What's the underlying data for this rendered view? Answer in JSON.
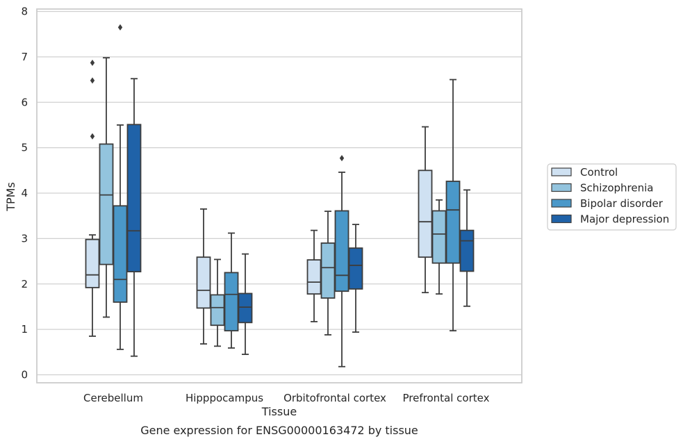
{
  "chart_data": {
    "type": "boxplot",
    "caption": "Gene expression for ENSG00000163472 by tissue",
    "xlabel": "Tissue",
    "ylabel": "TPMs",
    "ylim": [
      -0.2,
      8.0
    ],
    "yticks": [
      0,
      1,
      2,
      3,
      4,
      5,
      6,
      7,
      8
    ],
    "grid": true,
    "legend_position": "right",
    "categories": [
      "Cerebellum",
      "Hipppocampus",
      "Orbitofrontal cortex",
      "Prefrontal cortex"
    ],
    "series": [
      {
        "name": "Control",
        "color": "#cfe1f2",
        "boxes": [
          {
            "whisker_low": 0.85,
            "q1": 1.92,
            "median": 2.2,
            "q3": 2.98,
            "whisker_high": 3.08,
            "outliers": [
              5.25,
              6.48,
              6.87
            ]
          },
          {
            "whisker_low": 0.68,
            "q1": 1.47,
            "median": 1.86,
            "q3": 2.59,
            "whisker_high": 3.65,
            "outliers": []
          },
          {
            "whisker_low": 1.17,
            "q1": 1.78,
            "median": 2.04,
            "q3": 2.53,
            "whisker_high": 3.18,
            "outliers": []
          },
          {
            "whisker_low": 1.81,
            "q1": 2.59,
            "median": 3.37,
            "q3": 4.5,
            "whisker_high": 5.46,
            "outliers": []
          }
        ]
      },
      {
        "name": "Schizophrenia",
        "color": "#93c4de",
        "boxes": [
          {
            "whisker_low": 1.27,
            "q1": 2.43,
            "median": 3.96,
            "q3": 5.08,
            "whisker_high": 6.98,
            "outliers": []
          },
          {
            "whisker_low": 0.63,
            "q1": 1.09,
            "median": 1.48,
            "q3": 1.76,
            "whisker_high": 2.54,
            "outliers": []
          },
          {
            "whisker_low": 0.88,
            "q1": 1.69,
            "median": 2.36,
            "q3": 2.9,
            "whisker_high": 3.6,
            "outliers": []
          },
          {
            "whisker_low": 1.78,
            "q1": 2.46,
            "median": 3.1,
            "q3": 3.61,
            "whisker_high": 3.85,
            "outliers": []
          }
        ]
      },
      {
        "name": "Bipolar disorder",
        "color": "#4a98c9",
        "boxes": [
          {
            "whisker_low": 0.56,
            "q1": 1.6,
            "median": 2.1,
            "q3": 3.72,
            "whisker_high": 5.5,
            "outliers": [
              7.65
            ]
          },
          {
            "whisker_low": 0.59,
            "q1": 0.97,
            "median": 1.77,
            "q3": 2.25,
            "whisker_high": 3.12,
            "outliers": []
          },
          {
            "whisker_low": 0.18,
            "q1": 1.84,
            "median": 2.19,
            "q3": 3.61,
            "whisker_high": 4.46,
            "outliers": [
              4.77
            ]
          },
          {
            "whisker_low": 0.97,
            "q1": 2.46,
            "median": 3.63,
            "q3": 4.26,
            "whisker_high": 6.5,
            "outliers": []
          }
        ]
      },
      {
        "name": "Major depression",
        "color": "#1f62a8",
        "boxes": [
          {
            "whisker_low": 0.41,
            "q1": 2.27,
            "median": 3.17,
            "q3": 5.51,
            "whisker_high": 6.52,
            "outliers": []
          },
          {
            "whisker_low": 0.45,
            "q1": 1.15,
            "median": 1.49,
            "q3": 1.79,
            "whisker_high": 2.66,
            "outliers": []
          },
          {
            "whisker_low": 0.94,
            "q1": 1.89,
            "median": 2.41,
            "q3": 2.79,
            "whisker_high": 3.31,
            "outliers": []
          },
          {
            "whisker_low": 1.51,
            "q1": 2.28,
            "median": 2.95,
            "q3": 3.18,
            "whisker_high": 4.07,
            "outliers": []
          }
        ]
      }
    ]
  }
}
